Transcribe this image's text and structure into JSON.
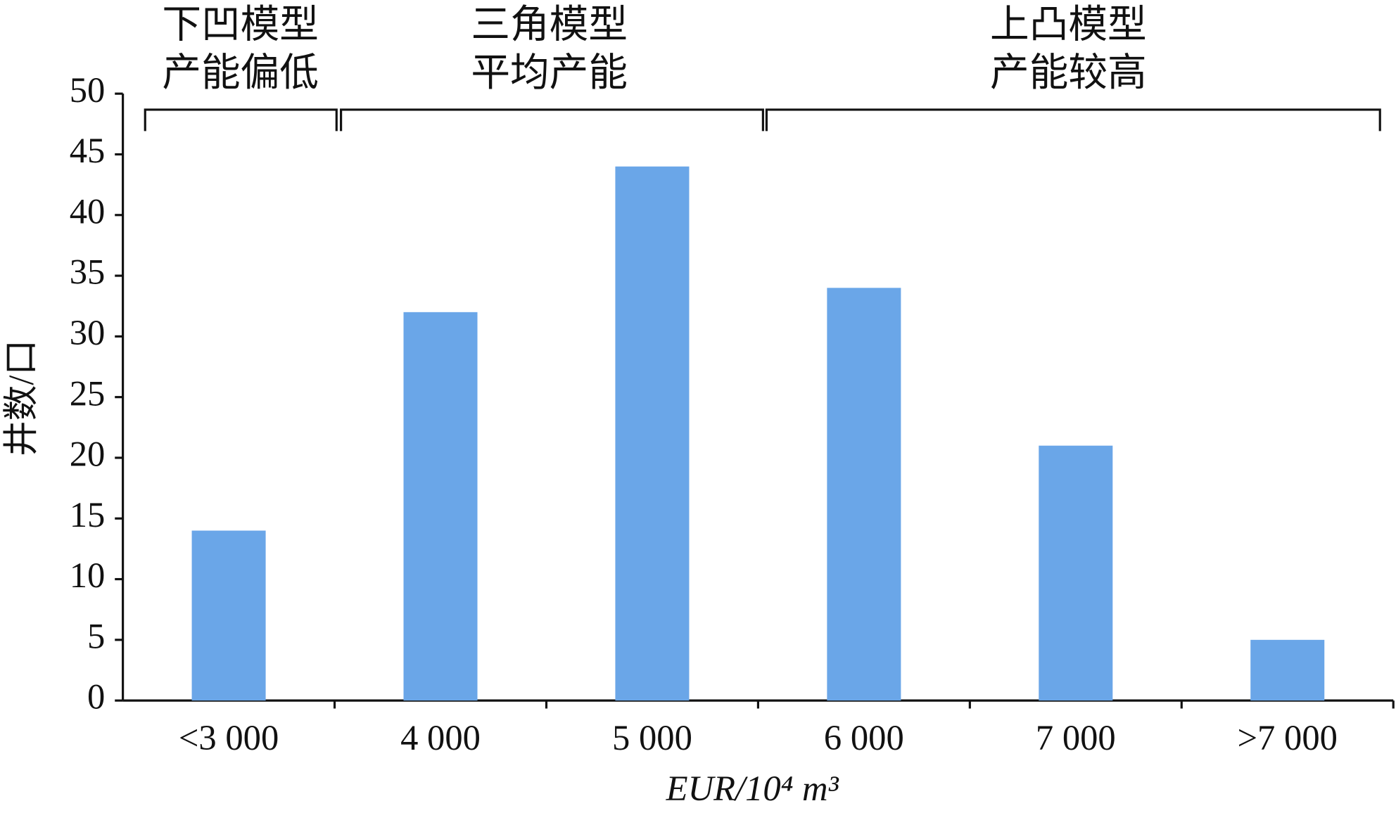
{
  "chart_data": {
    "type": "bar",
    "categories": [
      "<3 000",
      "4 000",
      "5 000",
      "6 000",
      "7 000",
      ">7 000"
    ],
    "values": [
      14,
      32,
      44,
      34,
      21,
      5
    ],
    "color": "#6aa6e8",
    "ylim": [
      0,
      50
    ],
    "yticks": [
      0,
      5,
      10,
      15,
      20,
      25,
      30,
      35,
      40,
      45,
      50
    ],
    "x_label": "EUR/10⁴ m³",
    "y_label": "井数/口",
    "annotations": [
      {
        "lines": [
          "下凹模型",
          "产能偏低"
        ]
      },
      {
        "lines": [
          "三角模型",
          "平均产能"
        ]
      },
      {
        "lines": [
          "上凸模型",
          "产能较高"
        ]
      }
    ]
  }
}
